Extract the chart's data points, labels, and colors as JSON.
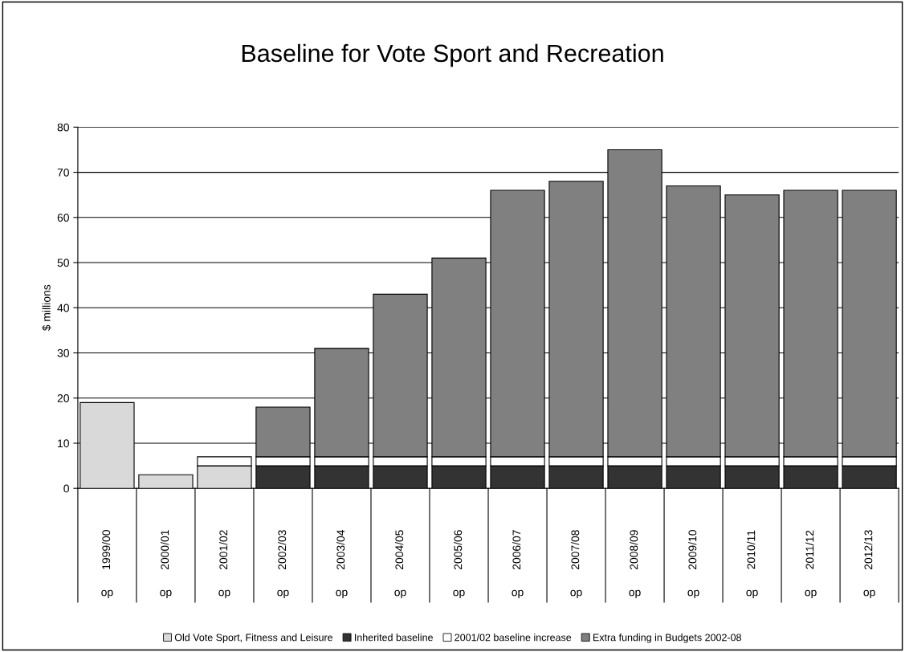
{
  "chart_data": {
    "type": "bar",
    "title": "Baseline for Vote Sport and Recreation",
    "ylabel": "$ millions",
    "categories": [
      "1999/00\nop",
      "2000/01\nop",
      "2001/02\nop",
      "2002/03\nop",
      "2003/04\nop",
      "2004/05\nop",
      "2005/06\nop",
      "2006/07\nop",
      "2007/08\nop",
      "2008/09\nop",
      "2009/10\nop",
      "2010/11\nop",
      "2011/12\nop",
      "2012/13\nop"
    ],
    "stacked": true,
    "series": [
      {
        "name": "Old Vote Sport, Fitness and Leisure",
        "color": "#d9d9d9",
        "values": [
          19,
          3,
          5,
          null,
          null,
          null,
          null,
          null,
          null,
          null,
          null,
          null,
          null,
          null
        ]
      },
      {
        "name": "Inherited baseline",
        "color": "#333333",
        "values": [
          null,
          null,
          null,
          5,
          5,
          5,
          5,
          5,
          5,
          5,
          5,
          5,
          5,
          5
        ]
      },
      {
        "name": "2001/02 baseline increase",
        "color": "#ffffff",
        "values": [
          null,
          null,
          2,
          2,
          2,
          2,
          2,
          2,
          2,
          2,
          2,
          2,
          2,
          2
        ]
      },
      {
        "name": "Extra funding in Budgets 2002-08",
        "color": "#808080",
        "values": [
          null,
          null,
          null,
          11,
          24,
          36,
          44,
          59,
          61,
          68,
          60,
          58,
          59,
          59
        ]
      }
    ],
    "ylim": [
      0,
      80
    ],
    "yticks": [
      0,
      10,
      20,
      30,
      40,
      50,
      60,
      70,
      80
    ],
    "grid": "y",
    "legend": "bottom"
  }
}
